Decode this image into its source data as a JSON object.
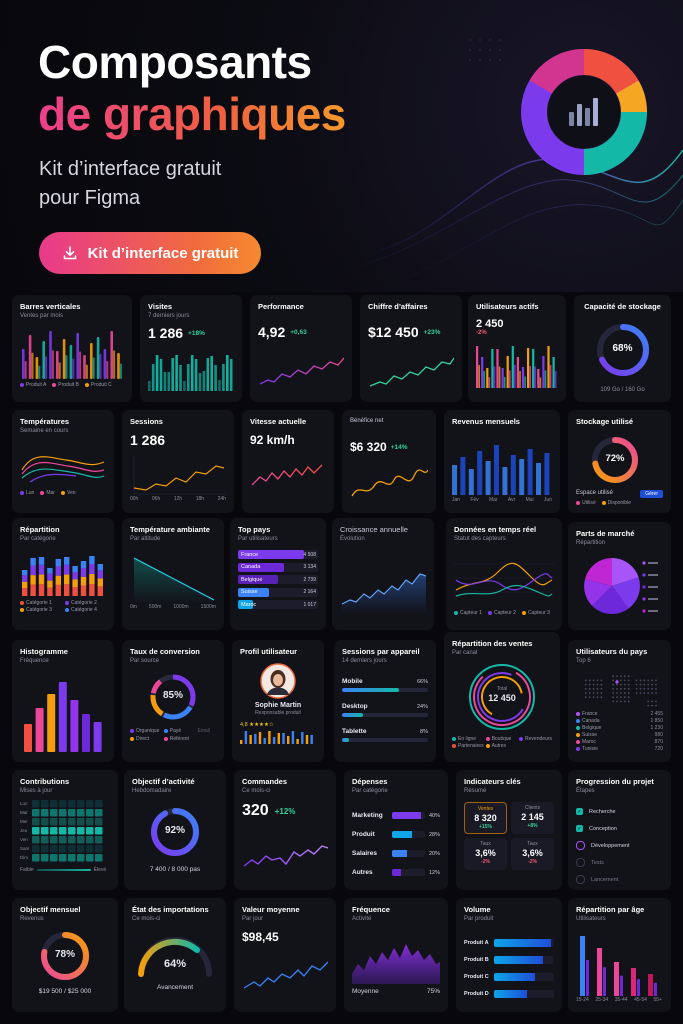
{
  "hero": {
    "title_line1": "Composants",
    "title_line2": "de graphiques",
    "subtitle_line1": "Kit d’interface gratuit",
    "subtitle_line2": "pour Figma",
    "cta_label": "Kit d’interface gratuit",
    "colors": {
      "pink": "#e83a8b",
      "orange": "#f06b3f",
      "purple": "#7c3aed",
      "teal": "#14b8a6"
    }
  },
  "r1": {
    "barres": {
      "title": "Barres verticales",
      "subtitle": "Ventes par mois",
      "legend": [
        "Produit A",
        "Produit B",
        "Produit C"
      ]
    },
    "visites": {
      "title": "Visites",
      "subtitle": "7 derniers jours",
      "value": "1 286",
      "delta": "+18%"
    },
    "perf": {
      "title": "Performance",
      "value": "4,92",
      "delta": "+0,63"
    },
    "ca": {
      "title": "Chiffre d’affaires",
      "value": "$12 450",
      "delta": "+23%"
    },
    "users": {
      "title": "Utilisateurs actifs",
      "value": "2 450",
      "delta": "-2%"
    },
    "storage": {
      "title": "Capacité de stockage",
      "value": "68%",
      "footer": "109 Go / 160 Go",
      "percent": 68
    }
  },
  "r2": {
    "temp": {
      "title": "Températures",
      "subtitle": "Semaine en cours",
      "legend": [
        "Lun",
        "Mar",
        "Ven"
      ]
    },
    "sessions": {
      "title": "Sessions",
      "value": "1 286",
      "ticks": [
        "00h",
        "06h",
        "12h",
        "18h",
        "24h"
      ]
    },
    "vitesse": {
      "title": "Vitesse actuelle",
      "value": "92 km/h"
    },
    "benefice": {
      "title": "Bénéfice net",
      "value": "$6 320",
      "delta": "+14%"
    },
    "revenus": {
      "title": "Revenus mensuels",
      "months": [
        "Jan",
        "Fév",
        "Mar",
        "Avr",
        "Mai",
        "Jun"
      ]
    },
    "stock": {
      "title": "Stockage utilisé",
      "value": "72%",
      "label": "Espace utilisé",
      "button": "Gérer",
      "legend": [
        "Utilisé",
        "Disponible"
      ],
      "percent": 72
    }
  },
  "r3": {
    "repartition": {
      "title": "Répartition",
      "subtitle": "Par catégorie",
      "legend": [
        "Catégorie 1",
        "Catégorie 2",
        "Catégorie 3",
        "Catégorie 4"
      ]
    },
    "ambiante": {
      "title": "Température ambiante",
      "subtitle": "Par altitude",
      "ticks": [
        "0m",
        "500m",
        "1000m",
        "1500m"
      ]
    },
    "pays": {
      "title": "Top pays",
      "subtitle": "Par utilisateurs",
      "items": [
        {
          "name": "France",
          "value": "4 508",
          "pct": 100
        },
        {
          "name": "Canada",
          "value": "3 134",
          "pct": 70
        },
        {
          "name": "Belgique",
          "value": "2 739",
          "pct": 61
        },
        {
          "name": "Suisse",
          "value": "2 164",
          "pct": 48
        },
        {
          "name": "Maroc",
          "value": "1 017",
          "pct": 23
        }
      ]
    },
    "croissance": {
      "title": "Croissance annuelle",
      "subtitle": "Évolution"
    },
    "temps_reel": {
      "title": "Données en temps réel",
      "subtitle": "Statut des capteurs",
      "legend": [
        "Capteur 1",
        "Capteur 2",
        "Capteur 3"
      ]
    },
    "parts": {
      "title": "Parts de marché",
      "subtitle": "Répartition"
    }
  },
  "r4": {
    "histo": {
      "title": "Histogramme",
      "subtitle": "Fréquence"
    },
    "conversion": {
      "title": "Taux de conversion",
      "subtitle": "Par source",
      "value": "85%",
      "legend": [
        "Organique",
        "Payé",
        "Direct",
        "Référent",
        "Email"
      ]
    },
    "profil": {
      "title": "Profil utilisateur",
      "name": "Sophie Martin",
      "role": "Responsable produit",
      "rating": "4,8 ★★★★☆"
    },
    "appareils": {
      "title": "Sessions par appareil",
      "subtitle": "14 derniers jours",
      "items": [
        {
          "name": "Mobile",
          "value": "66%",
          "pct": 66
        },
        {
          "name": "Desktop",
          "value": "24%",
          "pct": 24
        },
        {
          "name": "Tablette",
          "value": "8%",
          "pct": 8
        }
      ]
    },
    "ventes": {
      "title": "Répartition des ventes",
      "subtitle": "Par canal",
      "total_label": "Total",
      "total": "12 450",
      "legend": [
        "En ligne",
        "Boutique",
        "Revendeurs",
        "Partenaires",
        "Autres"
      ]
    },
    "upays": {
      "title": "Utilisateurs du pays",
      "subtitle": "Top 6",
      "items": [
        {
          "name": "France",
          "value": "2 455"
        },
        {
          "name": "Canada",
          "value": "1 850"
        },
        {
          "name": "Belgique",
          "value": "1 230"
        },
        {
          "name": "Suisse",
          "value": "980"
        },
        {
          "name": "Maroc",
          "value": "870"
        },
        {
          "name": "Tunisie",
          "value": "720"
        }
      ]
    }
  },
  "r5": {
    "contrib": {
      "title": "Contributions",
      "subtitle": "Mises à jour",
      "days": [
        "Lun",
        "Mar",
        "Mer",
        "Jeu",
        "Ven",
        "Sam",
        "Dim"
      ],
      "low": "Faible",
      "high": "Élevé"
    },
    "objectif": {
      "title": "Objectif d’activité",
      "subtitle": "Hebdomadaire",
      "value": "92%",
      "footer": "7 400 / 8 000 pas",
      "percent": 92
    },
    "commandes": {
      "title": "Commandes",
      "subtitle": "Ce mois-ci",
      "value": "320",
      "delta": "+12%"
    },
    "depenses": {
      "title": "Dépenses",
      "subtitle": "Par catégorie",
      "items": [
        {
          "name": "Marketing",
          "value": "40%",
          "pct": 40
        },
        {
          "name": "Produit",
          "value": "28%",
          "pct": 28
        },
        {
          "name": "Salaires",
          "value": "20%",
          "pct": 20
        },
        {
          "name": "Autres",
          "value": "12%",
          "pct": 12
        }
      ]
    },
    "indicateurs": {
      "title": "Indicateurs clés",
      "subtitle": "Résumé",
      "cells": [
        {
          "label": "Ventes",
          "value": "8 320",
          "delta": "+15%"
        },
        {
          "label": "Clients",
          "value": "2 145",
          "delta": "+8%"
        },
        {
          "label": "Taux",
          "value": "3,6%",
          "delta": "-2%"
        },
        {
          "label": "Taux",
          "value": "3,6%",
          "delta": "-2%"
        }
      ]
    },
    "progression": {
      "title": "Progression du projet",
      "subtitle": "Étapes",
      "steps": [
        "Recherche",
        "Conception",
        "Développement",
        "Tests",
        "Lancement"
      ]
    }
  },
  "r6": {
    "mensuel": {
      "title": "Objectif mensuel",
      "subtitle": "Revenus",
      "value": "78%",
      "footer": "$19 500 / $25 000",
      "percent": 78
    },
    "imports": {
      "title": "État des importations",
      "subtitle": "Ce mois-ci",
      "value": "64%",
      "footer": "Avancement",
      "percent": 64
    },
    "moyenne": {
      "title": "Valeur moyenne",
      "subtitle": "Par jour",
      "value": "$98,45"
    },
    "frequence": {
      "title": "Fréquence",
      "subtitle": "Activité",
      "label": "Moyenne",
      "value": "75%"
    },
    "volume": {
      "title": "Volume",
      "subtitle": "Par produit",
      "items": [
        {
          "name": "Produit A",
          "pct": 95
        },
        {
          "name": "Produit B",
          "pct": 82
        },
        {
          "name": "Produit C",
          "pct": 68
        },
        {
          "name": "Produit D",
          "pct": 55
        }
      ]
    },
    "age": {
      "title": "Répartition par âge",
      "subtitle": "Utilisateurs",
      "ticks": [
        "15-24",
        "25-34",
        "35-44",
        "45-54",
        "55+"
      ]
    }
  }
}
